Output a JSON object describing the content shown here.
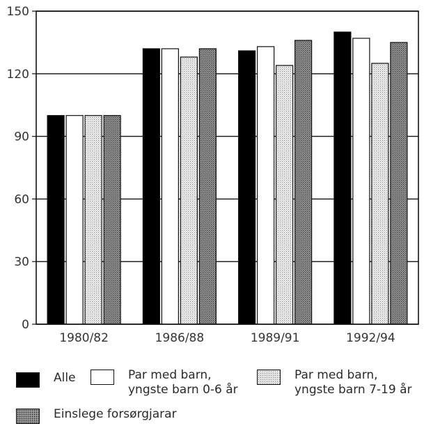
{
  "chart_data": {
    "type": "bar",
    "categories": [
      "1980/82",
      "1986/88",
      "1989/91",
      "1992/94"
    ],
    "series": [
      {
        "name": "Alle",
        "values": [
          100,
          132,
          131,
          140
        ],
        "fill": "#000000"
      },
      {
        "name": "Par med barn,\nyngste barn 0-6 år",
        "values": [
          100,
          132,
          133,
          137
        ],
        "fill": "#ffffff"
      },
      {
        "name": "Par med barn,\nyngste barn 7-19 år",
        "values": [
          100,
          128,
          124,
          125
        ],
        "fill": "light-dots"
      },
      {
        "name": "Einslege forsørgjarar",
        "values": [
          100,
          132,
          136,
          135
        ],
        "fill": "dark-dots"
      }
    ],
    "ylim": [
      0,
      150
    ],
    "yticks": [
      "0",
      "30",
      "60",
      "90",
      "120",
      "150"
    ],
    "grid": true,
    "legend_position": "bottom",
    "title": "",
    "xlabel": "",
    "ylabel": ""
  }
}
